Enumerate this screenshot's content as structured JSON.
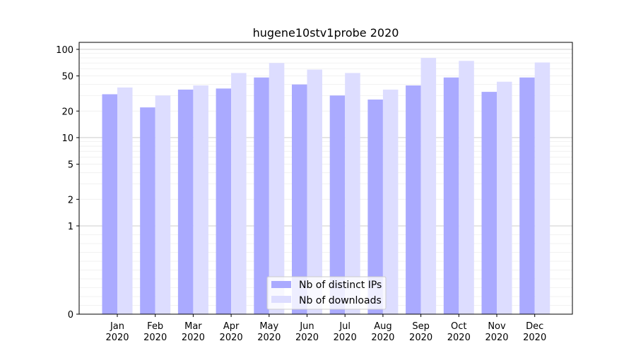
{
  "chart_data": {
    "type": "bar",
    "title": "hugene10stv1probe 2020",
    "xlabel": "",
    "ylabel": "",
    "yscale": "symlog",
    "ylim": [
      0,
      120
    ],
    "ytick_values": [
      0,
      1,
      2,
      5,
      10,
      20,
      50,
      100
    ],
    "ytick_labels": [
      "0",
      "1",
      "2",
      "5",
      "10",
      "20",
      "50",
      "100"
    ],
    "grid": "horizontal",
    "legend_position": "bottom-center",
    "categories": [
      "Jan\n2020",
      "Feb\n2020",
      "Mar\n2020",
      "Apr\n2020",
      "May\n2020",
      "Jun\n2020",
      "Jul\n2020",
      "Aug\n2020",
      "Sep\n2020",
      "Oct\n2020",
      "Nov\n2020",
      "Dec\n2020"
    ],
    "series": [
      {
        "name": "Nb of distinct IPs",
        "color": "#aaaaff",
        "values": [
          31,
          22,
          35,
          36,
          48,
          40,
          30,
          27,
          39,
          48,
          33,
          48
        ]
      },
      {
        "name": "Nb of downloads",
        "color": "#ddddff",
        "values": [
          37,
          30,
          39,
          54,
          70,
          59,
          54,
          35,
          80,
          74,
          43,
          71
        ]
      }
    ]
  }
}
